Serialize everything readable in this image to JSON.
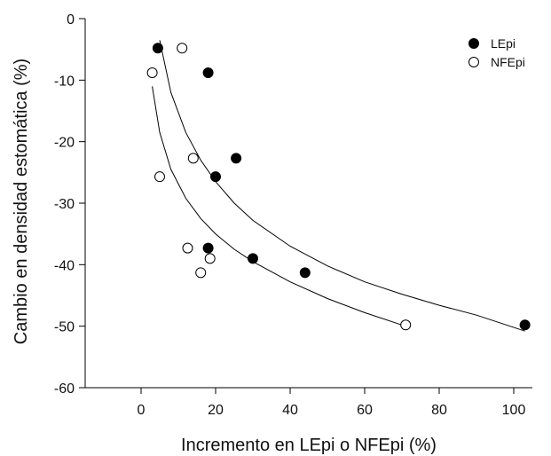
{
  "chart_data": {
    "type": "scatter",
    "xlabel": "Incremento en LEpi o NFEpi (%)",
    "ylabel": "Cambio en densidad estomática (%)",
    "xlim": [
      -15,
      105
    ],
    "ylim": [
      -60,
      0
    ],
    "xticks": [
      0,
      20,
      40,
      60,
      80,
      100
    ],
    "yticks": [
      0,
      -10,
      -20,
      -30,
      -40,
      -50,
      -60
    ],
    "grid": false,
    "legend_position": "top-right",
    "series": [
      {
        "name": "LEpi",
        "marker": "filled-circle",
        "color": "#000000",
        "points": [
          {
            "x": 4.5,
            "y": -4.8
          },
          {
            "x": 18,
            "y": -8.8
          },
          {
            "x": 25.5,
            "y": -22.7
          },
          {
            "x": 20,
            "y": -25.7
          },
          {
            "x": 18,
            "y": -37.3
          },
          {
            "x": 30,
            "y": -39.0
          },
          {
            "x": 44,
            "y": -41.3
          },
          {
            "x": 103,
            "y": -49.8
          }
        ],
        "fit_curve": [
          {
            "x": 5,
            "y": -3.5
          },
          {
            "x": 8,
            "y": -12.0
          },
          {
            "x": 12,
            "y": -18.5
          },
          {
            "x": 16,
            "y": -23.0
          },
          {
            "x": 20,
            "y": -26.5
          },
          {
            "x": 25,
            "y": -30.0
          },
          {
            "x": 30,
            "y": -32.8
          },
          {
            "x": 40,
            "y": -37.0
          },
          {
            "x": 50,
            "y": -40.2
          },
          {
            "x": 60,
            "y": -42.8
          },
          {
            "x": 70,
            "y": -44.8
          },
          {
            "x": 80,
            "y": -46.6
          },
          {
            "x": 90,
            "y": -48.2
          },
          {
            "x": 103,
            "y": -50.8
          }
        ]
      },
      {
        "name": "NFEpi",
        "marker": "open-circle",
        "color": "#000000",
        "points": [
          {
            "x": 3,
            "y": -8.8
          },
          {
            "x": 11,
            "y": -4.8
          },
          {
            "x": 14,
            "y": -22.7
          },
          {
            "x": 5,
            "y": -25.7
          },
          {
            "x": 12.5,
            "y": -37.3
          },
          {
            "x": 18.5,
            "y": -39.0
          },
          {
            "x": 16,
            "y": -41.3
          },
          {
            "x": 71,
            "y": -49.8
          }
        ],
        "fit_curve": [
          {
            "x": 3,
            "y": -11.0
          },
          {
            "x": 5,
            "y": -18.5
          },
          {
            "x": 8,
            "y": -24.5
          },
          {
            "x": 12,
            "y": -29.2
          },
          {
            "x": 16,
            "y": -32.5
          },
          {
            "x": 20,
            "y": -35.0
          },
          {
            "x": 25,
            "y": -37.5
          },
          {
            "x": 30,
            "y": -39.5
          },
          {
            "x": 40,
            "y": -42.8
          },
          {
            "x": 50,
            "y": -45.5
          },
          {
            "x": 60,
            "y": -47.8
          },
          {
            "x": 70,
            "y": -49.8
          }
        ]
      }
    ]
  }
}
